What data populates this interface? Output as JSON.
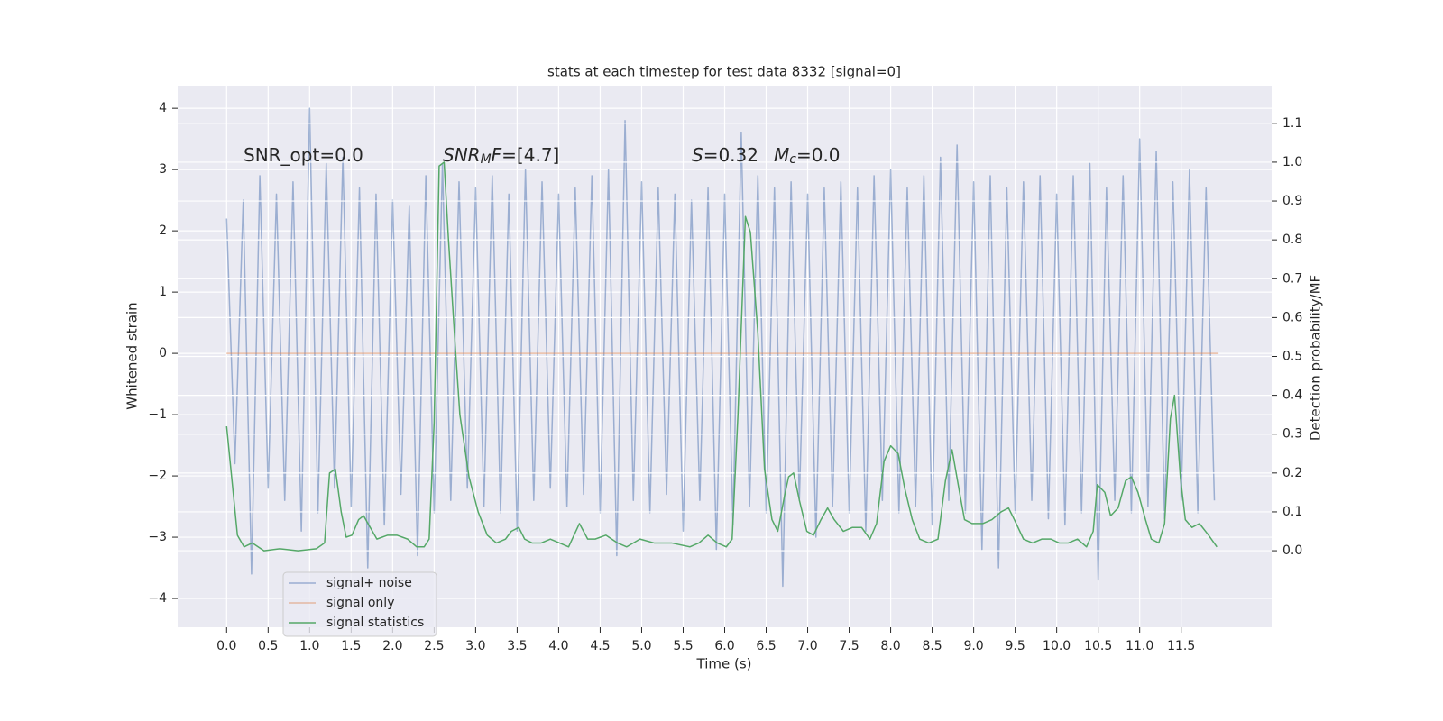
{
  "chart_data": {
    "type": "line",
    "title": "stats at each timestep for test data 8332 [signal=0]",
    "xlabel": "Time (s)",
    "ylabel": "Whitened strain",
    "y2label": "Detection probability/MF",
    "xlim": [
      -0.59,
      12.59
    ],
    "ylim": [
      -4.47,
      4.37
    ],
    "y2lim": [
      -0.197,
      1.197
    ],
    "grid": true,
    "xticks": [
      {
        "value": 0,
        "label": "0.0"
      },
      0.5,
      {
        "value": 1,
        "label": "1.0"
      },
      1.5,
      {
        "value": 2,
        "label": "2.0"
      },
      2.5,
      {
        "value": 3,
        "label": "3.0"
      },
      3.5,
      {
        "value": 4,
        "label": "4.0"
      },
      4.5,
      {
        "value": 5,
        "label": "5.0"
      },
      5.5,
      {
        "value": 6,
        "label": "6.0"
      },
      6.5,
      {
        "value": 7,
        "label": "7.0"
      },
      7.5,
      {
        "value": 8,
        "label": "8.0"
      },
      8.5,
      {
        "value": 9,
        "label": "9.0"
      },
      9.5,
      {
        "value": 10,
        "label": "10.0"
      },
      10.5,
      {
        "value": 11,
        "label": "11.0"
      },
      11.5
    ],
    "yticks": [
      {
        "value": -4,
        "label": "−4"
      },
      {
        "value": -3,
        "label": "−3"
      },
      {
        "value": -2,
        "label": "−2"
      },
      {
        "value": -1,
        "label": "−1"
      },
      0,
      1,
      2,
      3,
      4
    ],
    "y2ticks": [
      {
        "value": 0,
        "label": "0.0"
      },
      0.1,
      0.2,
      0.3,
      0.4,
      0.5,
      0.6,
      0.7,
      0.8,
      0.9,
      {
        "value": 1,
        "label": "1.0"
      },
      1.1
    ],
    "annotations": [
      [
        {
          "text": "SNR_opt=0.0",
          "style": "normal"
        }
      ],
      [
        {
          "text": "SNR",
          "style": "italic"
        },
        {
          "text": "M",
          "style": "italic-sub"
        },
        {
          "text": "F",
          "style": "italic"
        },
        {
          "text": "=[4.7]",
          "style": "normal"
        }
      ],
      [
        {
          "text": "S",
          "style": "italic"
        },
        {
          "text": "=0.32",
          "style": "normal"
        }
      ],
      [
        {
          "text": "M",
          "style": "italic"
        },
        {
          "text": "c",
          "style": "italic-sub"
        },
        {
          "text": "=0.0",
          "style": "normal"
        }
      ]
    ],
    "series": [
      {
        "name": "signal+ noise",
        "color": "#4c72b0",
        "opacity": 0.5,
        "axis": "y",
        "x": [
          0,
          0.1,
          0.2,
          0.3,
          0.4,
          0.5,
          0.6,
          0.7,
          0.8,
          0.9,
          1,
          1.1,
          1.2,
          1.3,
          1.4,
          1.5,
          1.6,
          1.7,
          1.8,
          1.9,
          2,
          2.1,
          2.2,
          2.3,
          2.4,
          2.5,
          2.6,
          2.7,
          2.8,
          2.9,
          3,
          3.1,
          3.2,
          3.3,
          3.4,
          3.5,
          3.6,
          3.7,
          3.8,
          3.9,
          4,
          4.1,
          4.2,
          4.3,
          4.4,
          4.5,
          4.6,
          4.7,
          4.8,
          4.9,
          5,
          5.1,
          5.2,
          5.3,
          5.4,
          5.5,
          5.6,
          5.7,
          5.8,
          5.9,
          6,
          6.1,
          6.2,
          6.3,
          6.4,
          6.5,
          6.6,
          6.7,
          6.8,
          6.9,
          7,
          7.1,
          7.2,
          7.3,
          7.4,
          7.5,
          7.6,
          7.7,
          7.8,
          7.9,
          8,
          8.1,
          8.2,
          8.3,
          8.4,
          8.5,
          8.6,
          8.7,
          8.8,
          8.9,
          9,
          9.1,
          9.2,
          9.3,
          9.4,
          9.5,
          9.6,
          9.7,
          9.8,
          9.9,
          10,
          10.1,
          10.2,
          10.3,
          10.4,
          10.5,
          10.6,
          10.7,
          10.8,
          10.9,
          11,
          11.1,
          11.2,
          11.3,
          11.4,
          11.5,
          11.6,
          11.7,
          11.8,
          11.9
        ],
        "values": [
          2.2,
          -1.8,
          2.5,
          -3.6,
          2.9,
          -2.2,
          2.6,
          -2.4,
          2.8,
          -2.9,
          4.0,
          -2.6,
          3.1,
          -2.2,
          3.2,
          -2.5,
          2.7,
          -3.5,
          2.6,
          -2.8,
          2.5,
          -2.3,
          2.4,
          -3.3,
          2.9,
          -2.6,
          3.1,
          -2.4,
          2.8,
          -2.2,
          2.7,
          -2.5,
          2.9,
          -2.6,
          2.6,
          -2.9,
          3.0,
          -2.4,
          2.8,
          -2.2,
          2.6,
          -2.5,
          2.7,
          -2.3,
          2.9,
          -2.6,
          3.0,
          -3.3,
          3.8,
          -2.4,
          2.8,
          -2.6,
          2.7,
          -2.3,
          2.6,
          -2.9,
          2.5,
          -2.4,
          2.7,
          -3.2,
          2.6,
          -2.8,
          3.6,
          -2.5,
          2.9,
          -2.6,
          2.7,
          -3.8,
          2.8,
          -2.4,
          2.6,
          -3.0,
          2.7,
          -2.5,
          2.8,
          -2.6,
          2.7,
          -2.9,
          2.9,
          -2.4,
          3.0,
          -2.6,
          2.7,
          -2.5,
          2.9,
          -2.8,
          3.2,
          -2.4,
          3.4,
          -2.6,
          2.8,
          -3.2,
          2.9,
          -3.5,
          2.7,
          -2.6,
          2.8,
          -2.4,
          2.9,
          -2.7,
          2.6,
          -2.8,
          2.9,
          -2.6,
          3.1,
          -3.7,
          2.7,
          -2.4,
          2.9,
          -2.6,
          3.5,
          -2.5,
          3.3,
          -2.7,
          2.8,
          -2.4,
          3.0,
          -2.6,
          2.7,
          -2.4
        ]
      },
      {
        "name": "signal only",
        "color": "#dd8452",
        "opacity": 0.5,
        "axis": "y",
        "x": [
          0,
          11.95
        ],
        "values": [
          0,
          0
        ]
      },
      {
        "name": "signal statistics",
        "color": "#55a868",
        "opacity": 1,
        "axis": "y2",
        "x": [
          0,
          0.13,
          0.21,
          0.31,
          0.45,
          0.64,
          0.86,
          1.08,
          1.18,
          1.24,
          1.31,
          1.38,
          1.44,
          1.51,
          1.59,
          1.65,
          1.73,
          1.81,
          1.94,
          2.05,
          2.18,
          2.29,
          2.38,
          2.44,
          2.5,
          2.56,
          2.62,
          2.67,
          2.75,
          2.81,
          2.92,
          3.03,
          3.14,
          3.25,
          3.36,
          3.43,
          3.52,
          3.59,
          3.68,
          3.79,
          3.9,
          4.01,
          4.12,
          4.25,
          4.35,
          4.44,
          4.57,
          4.71,
          4.82,
          4.98,
          5.15,
          5.36,
          5.58,
          5.69,
          5.8,
          5.91,
          6.02,
          6.09,
          6.16,
          6.25,
          6.31,
          6.4,
          6.48,
          6.57,
          6.64,
          6.72,
          6.77,
          6.83,
          6.9,
          6.99,
          7.07,
          7.16,
          7.24,
          7.32,
          7.43,
          7.54,
          7.65,
          7.75,
          7.83,
          7.92,
          8.0,
          8.09,
          8.17,
          8.26,
          8.35,
          8.46,
          8.57,
          8.66,
          8.74,
          8.83,
          8.89,
          8.98,
          9.11,
          9.22,
          9.33,
          9.42,
          9.49,
          9.6,
          9.71,
          9.82,
          9.93,
          10.03,
          10.14,
          10.25,
          10.36,
          10.44,
          10.49,
          10.58,
          10.65,
          10.74,
          10.83,
          10.9,
          10.98,
          11.07,
          11.14,
          11.23,
          11.3,
          11.37,
          11.42,
          11.49,
          11.55,
          11.63,
          11.72,
          11.83,
          11.93
        ],
        "values": [
          0.32,
          0.04,
          0.01,
          0.02,
          0,
          0.005,
          0,
          0.005,
          0.02,
          0.2,
          0.21,
          0.1,
          0.035,
          0.04,
          0.08,
          0.09,
          0.06,
          0.03,
          0.04,
          0.04,
          0.03,
          0.01,
          0.01,
          0.03,
          0.33,
          0.99,
          1.0,
          0.81,
          0.54,
          0.35,
          0.19,
          0.1,
          0.04,
          0.02,
          0.03,
          0.05,
          0.06,
          0.03,
          0.02,
          0.02,
          0.03,
          0.02,
          0.01,
          0.07,
          0.03,
          0.03,
          0.04,
          0.02,
          0.01,
          0.03,
          0.02,
          0.02,
          0.01,
          0.02,
          0.04,
          0.02,
          0.01,
          0.03,
          0.35,
          0.86,
          0.82,
          0.56,
          0.21,
          0.08,
          0.05,
          0.14,
          0.19,
          0.2,
          0.13,
          0.05,
          0.04,
          0.08,
          0.11,
          0.08,
          0.05,
          0.06,
          0.06,
          0.03,
          0.07,
          0.23,
          0.27,
          0.25,
          0.16,
          0.08,
          0.03,
          0.02,
          0.03,
          0.18,
          0.26,
          0.15,
          0.08,
          0.07,
          0.07,
          0.08,
          0.1,
          0.11,
          0.08,
          0.03,
          0.02,
          0.03,
          0.03,
          0.02,
          0.02,
          0.03,
          0.01,
          0.05,
          0.17,
          0.15,
          0.09,
          0.11,
          0.18,
          0.19,
          0.15,
          0.08,
          0.03,
          0.02,
          0.07,
          0.34,
          0.4,
          0.19,
          0.08,
          0.06,
          0.07,
          0.04,
          0.01
        ]
      }
    ]
  }
}
